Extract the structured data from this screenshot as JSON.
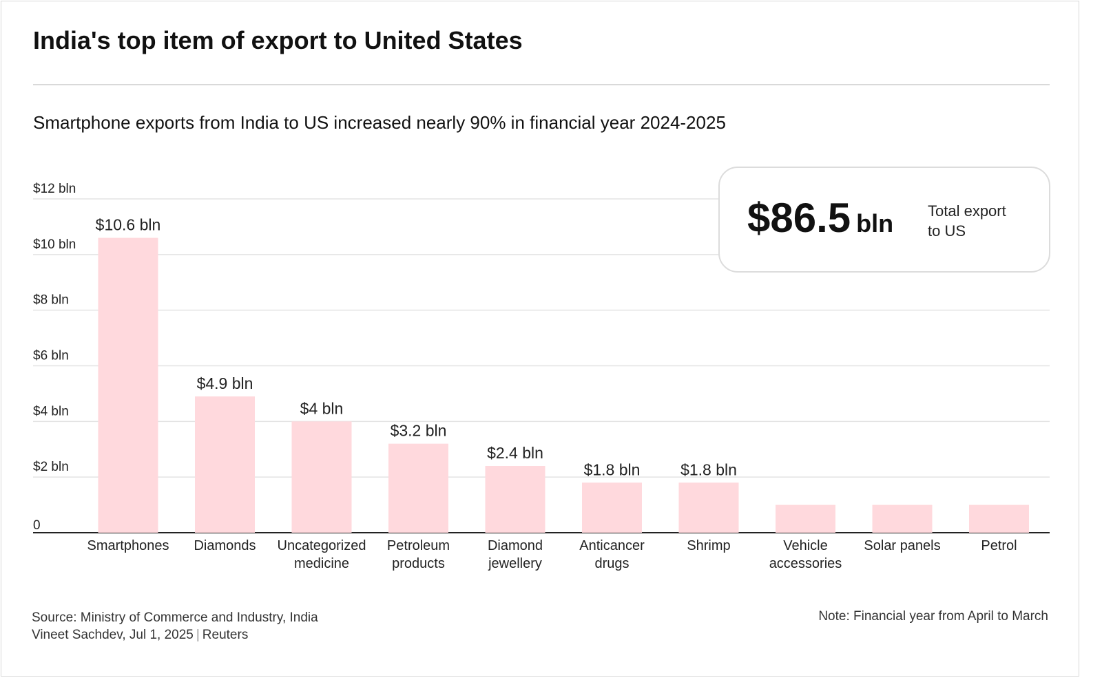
{
  "title": "India's top item of export to United States",
  "subtitle": "Smartphone exports from India to US increased nearly 90% in financial year 2024-2025",
  "total": {
    "amount": "$86.5",
    "unit": "bln",
    "label_line1": "Total export",
    "label_line2": "to US"
  },
  "footer": {
    "source": "Source: Ministry of Commerce and Industry, India",
    "byline_author": "Vineet Sachdev, Jul 1, 2025",
    "byline_org": "Reuters",
    "note": "Note: Financial year from April to March"
  },
  "colors": {
    "bar": "#ffd9dd",
    "grid": "#e3e3e3",
    "axis": "#222222",
    "text": "#111111"
  },
  "chart_data": {
    "type": "bar",
    "categories": [
      [
        "Smartphones"
      ],
      [
        "Diamonds"
      ],
      [
        "Uncategorized",
        "medicine"
      ],
      [
        "Petroleum",
        "products"
      ],
      [
        "Diamond",
        "jewellery"
      ],
      [
        "Anticancer",
        "drugs"
      ],
      [
        "Shrimp"
      ],
      [
        "Vehicle",
        "accessories"
      ],
      [
        "Solar panels"
      ],
      [
        "Petrol"
      ]
    ],
    "values": [
      10.6,
      4.9,
      4.0,
      3.2,
      2.4,
      1.8,
      1.8,
      1.0,
      1.0,
      1.0
    ],
    "data_labels": [
      "$10.6 bln",
      "$4.9 bln",
      "$4 bln",
      "$3.2 bln",
      "$2.4 bln",
      "$1.8 bln",
      "$1.8 bln",
      "",
      "",
      ""
    ],
    "yticks": [
      0,
      2,
      4,
      6,
      8,
      10,
      12
    ],
    "ytick_labels": [
      "0",
      "$2 bln",
      "$4 bln",
      "$6 bln",
      "$8 bln",
      "$10 bln",
      "$12 bln"
    ],
    "ylim": [
      0,
      12
    ],
    "grid": true
  }
}
